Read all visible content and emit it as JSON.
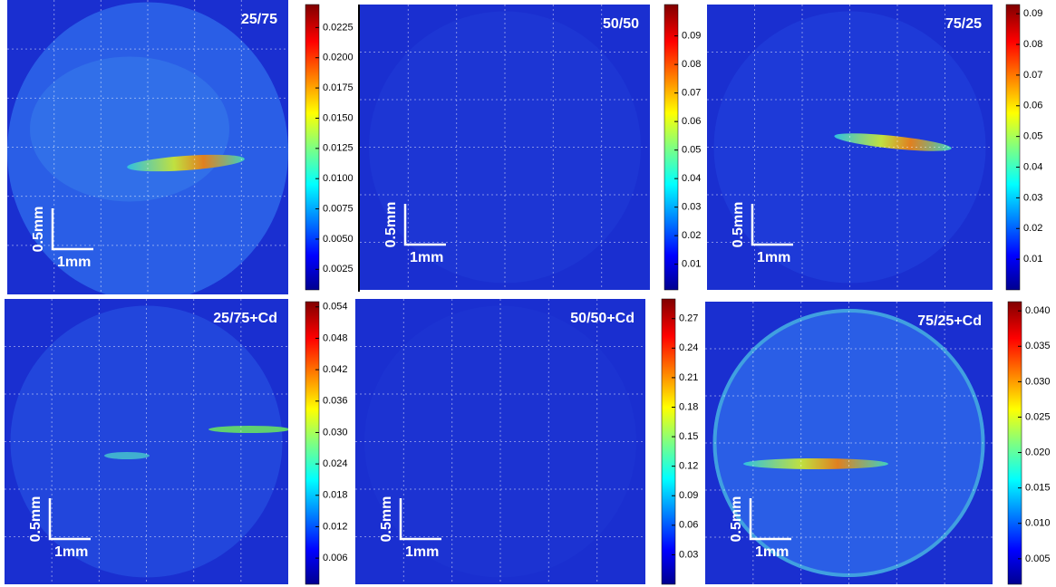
{
  "chart_data": [
    {
      "type": "heatmap",
      "title": "25/75",
      "scale_bar_y": "0.5mm",
      "scale_bar_x": "1mm",
      "colorbar": {
        "lim": [
          0.0008,
          0.0244
        ],
        "ticks": [
          0.0025,
          {
            "value": 0.005,
            "label": "0.0050"
          },
          0.0075,
          {
            "value": 0.01,
            "label": "0.0100"
          },
          0.0125,
          {
            "value": 0.015,
            "label": "0.0150"
          },
          0.0175,
          {
            "value": 0.02,
            "label": "0.0200"
          },
          0.0225
        ]
      }
    },
    {
      "type": "heatmap",
      "title": "50/50",
      "scale_bar_y": "0.5mm",
      "scale_bar_x": "1mm",
      "colorbar": {
        "lim": [
          0.001,
          0.101
        ],
        "ticks": [
          0.01,
          0.02,
          0.03,
          0.04,
          0.05,
          0.06,
          0.07,
          0.08,
          0.09
        ]
      }
    },
    {
      "type": "heatmap",
      "title": "75/25",
      "scale_bar_y": "0.5mm",
      "scale_bar_x": "1mm",
      "colorbar": {
        "lim": [
          0,
          0.093
        ],
        "ticks": [
          0.01,
          0.02,
          0.03,
          0.04,
          0.05,
          0.06,
          0.07,
          0.08,
          0.09
        ]
      }
    },
    {
      "type": "heatmap",
      "title": "25/75+Cd",
      "scale_bar_y": "0.5mm",
      "scale_bar_x": "1mm",
      "colorbar": {
        "lim": [
          0.001,
          0.055
        ],
        "ticks": [
          0.006,
          0.012,
          0.018,
          0.024,
          {
            "value": 0.03,
            "label": "0.030"
          },
          0.036,
          0.042,
          0.048,
          0.054
        ]
      }
    },
    {
      "type": "heatmap",
      "title": "50/50+Cd",
      "scale_bar_y": "0.5mm",
      "scale_bar_x": "1mm",
      "colorbar": {
        "lim": [
          0,
          0.29
        ],
        "ticks": [
          0.03,
          0.06,
          0.09,
          0.12,
          0.15,
          0.18,
          0.21,
          0.24,
          0.27
        ]
      }
    },
    {
      "type": "heatmap",
      "title": "75/25+Cd",
      "scale_bar_y": "0.5mm",
      "scale_bar_x": "1mm",
      "colorbar": {
        "lim": [
          0.0014,
          0.0413
        ],
        "ticks": [
          0.005,
          {
            "value": 0.01,
            "label": "0.010"
          },
          0.015,
          {
            "value": 0.02,
            "label": "0.020"
          },
          0.025,
          {
            "value": 0.03,
            "label": "0.030"
          },
          0.035,
          {
            "value": 0.04,
            "label": "0.040"
          }
        ]
      }
    }
  ]
}
